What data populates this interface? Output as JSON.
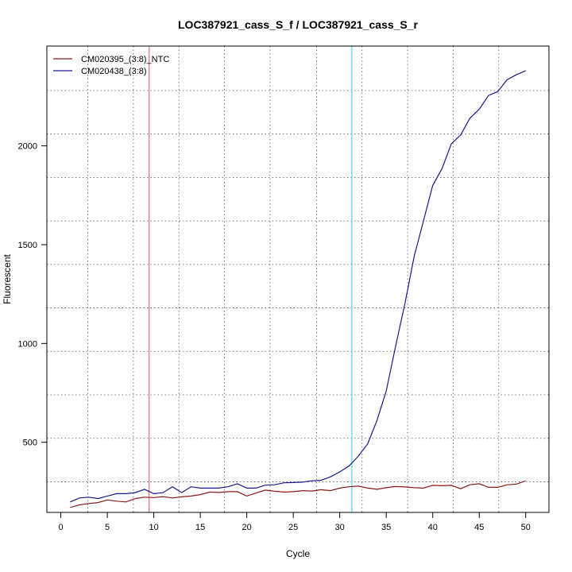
{
  "chart_data": {
    "type": "line",
    "title": "LOC387921_cass_S_f / LOC387921_cass_S_r",
    "xlabel": "Cycle",
    "ylabel": "Fluorescent",
    "xlim": [
      -1.5,
      52.5
    ],
    "ylim": [
      145,
      2505
    ],
    "x_ticks": [
      0,
      5,
      10,
      15,
      20,
      25,
      30,
      35,
      40,
      45,
      50
    ],
    "y_ticks": [
      500,
      1000,
      1500,
      2000
    ],
    "grid": true,
    "grid_x": [
      2.9,
      7.8,
      12.7,
      17.6,
      22.5,
      27.5,
      32.4,
      37.3,
      42.2,
      47.1
    ],
    "grid_y": [
      300,
      520,
      740,
      960,
      1180,
      1400,
      1620,
      1840,
      2060,
      2280
    ],
    "vlines": [
      {
        "x": 9.5,
        "color": "#e07070"
      },
      {
        "x": 31.3,
        "color": "#55d4f0"
      }
    ],
    "legend_position": "top-left",
    "x": [
      1,
      2,
      3,
      4,
      5,
      6,
      7,
      8,
      9,
      10,
      11,
      12,
      13,
      14,
      15,
      16,
      17,
      18,
      19,
      20,
      21,
      22,
      23,
      24,
      25,
      26,
      27,
      28,
      29,
      30,
      31,
      32,
      33,
      34,
      35,
      36,
      37,
      38,
      39,
      40,
      41,
      42,
      43,
      44,
      45,
      46,
      47,
      48,
      49,
      50
    ],
    "series": [
      {
        "name": "CM020395_(3:8)_NTC",
        "color": "#8b1a1a",
        "values": [
          170,
          183,
          190,
          195,
          208,
          202,
          198,
          215,
          222,
          220,
          225,
          218,
          224,
          228,
          235,
          248,
          246,
          250,
          250,
          228,
          243,
          258,
          252,
          248,
          250,
          255,
          253,
          260,
          255,
          268,
          275,
          278,
          268,
          262,
          270,
          276,
          274,
          270,
          268,
          282,
          280,
          282,
          265,
          285,
          290,
          272,
          272,
          285,
          288,
          305
        ]
      },
      {
        "name": "CM020438_(3:8)",
        "color": "#1a1a8b",
        "values": [
          198,
          218,
          222,
          215,
          228,
          240,
          240,
          245,
          262,
          240,
          245,
          275,
          245,
          275,
          268,
          268,
          268,
          275,
          290,
          268,
          268,
          283,
          285,
          295,
          296,
          298,
          305,
          308,
          325,
          350,
          380,
          430,
          492,
          610,
          760,
          985,
          1200,
          1440,
          1620,
          1800,
          1885,
          2010,
          2055,
          2140,
          2185,
          2255,
          2275,
          2335,
          2360,
          2380
        ]
      }
    ]
  }
}
